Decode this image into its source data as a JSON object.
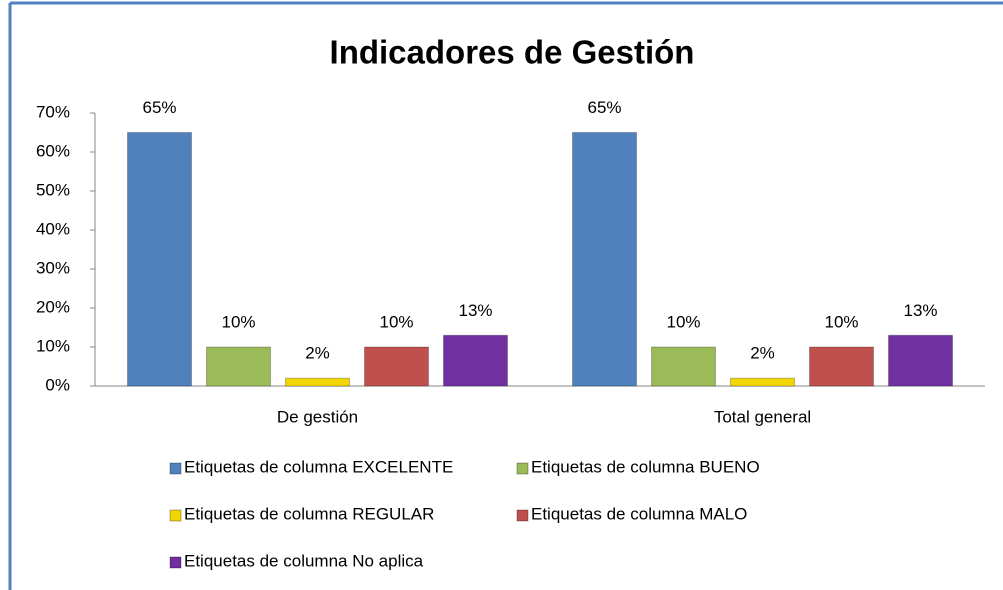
{
  "chart_data": {
    "type": "bar",
    "title": "Indicadores de Gestión",
    "categories": [
      "De gestión",
      "Total general"
    ],
    "series": [
      {
        "name": "Etiquetas de columna EXCELENTE",
        "color": "#4f81bd",
        "values": [
          65,
          65
        ],
        "value_labels": [
          "65%",
          "65%"
        ]
      },
      {
        "name": "Etiquetas de columna BUENO",
        "color": "#9bbb59",
        "values": [
          10,
          10
        ],
        "value_labels": [
          "10%",
          "10%"
        ]
      },
      {
        "name": "Etiquetas de columna REGULAR",
        "color": "#f2d600",
        "values": [
          2,
          2
        ],
        "value_labels": [
          "2%",
          "2%"
        ]
      },
      {
        "name": "Etiquetas de columna MALO",
        "color": "#c0504d",
        "values": [
          10,
          10
        ],
        "value_labels": [
          "10%",
          "10%"
        ]
      },
      {
        "name": "Etiquetas de columna No aplica",
        "color": "#7030a0",
        "values": [
          13,
          13
        ],
        "value_labels": [
          "13%",
          "13%"
        ]
      }
    ],
    "ylim": [
      0,
      70
    ],
    "yticks": [
      {
        "value": 0,
        "label": "0%"
      },
      {
        "value": 10,
        "label": "10%"
      },
      {
        "value": 20,
        "label": "20%"
      },
      {
        "value": 30,
        "label": "30%"
      },
      {
        "value": 40,
        "label": "40%"
      },
      {
        "value": 50,
        "label": "50%"
      },
      {
        "value": 60,
        "label": "60%"
      },
      {
        "value": 70,
        "label": "70%"
      }
    ],
    "grid": false,
    "legend": "bottom"
  }
}
